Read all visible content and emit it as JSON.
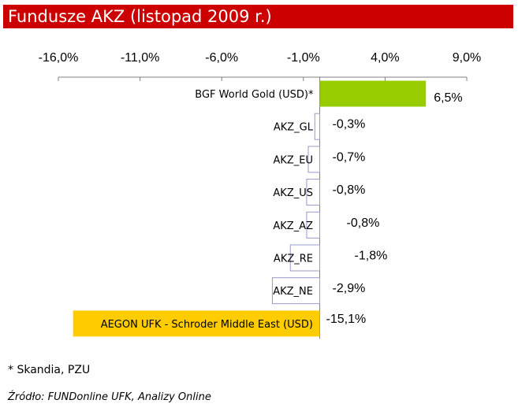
{
  "title": "Fundusze AKZ (listopad 2009 r.)",
  "footnote": "* Skandia, PZU",
  "source": "Źródło: FUNDonline UFK, Analizy Online",
  "colors": {
    "title_bg": "#cc0000",
    "title_text": "#ffffff",
    "highlight_green": "#99cc00",
    "highlight_yellow": "#ffcc00",
    "default_bar_fill": "#ffffff",
    "default_bar_stroke": "#9999cc"
  },
  "chart_data": {
    "type": "bar",
    "orientation": "horizontal",
    "title": "Fundusze AKZ (listopad 2009 r.)",
    "xlim": [
      -16,
      9
    ],
    "x_ticks": [
      -16,
      -11,
      -6,
      -1,
      4,
      9
    ],
    "x_tick_labels": [
      "-16,0%",
      "-11,0%",
      "-6,0%",
      "-1,0%",
      "4,0%",
      "9,0%"
    ],
    "categories": [
      "BGF World Gold (USD)*",
      "AKZ_GL",
      "AKZ_EU",
      "AKZ_US",
      "AKZ_AZ",
      "AKZ_RE",
      "AKZ_NE",
      "AEGON UFK - Schroder Middle East (USD)"
    ],
    "values": [
      6.5,
      -0.3,
      -0.7,
      -0.8,
      -0.8,
      -1.8,
      -2.9,
      -15.1
    ],
    "value_labels": [
      "6,5%",
      "-0,3%",
      "-0,7%",
      "-0,8%",
      "-0,8%",
      "-1,8%",
      "-2,9%",
      "-15,1%"
    ],
    "highlight": [
      "green",
      "none",
      "none",
      "none",
      "none",
      "none",
      "none",
      "yellow"
    ]
  }
}
